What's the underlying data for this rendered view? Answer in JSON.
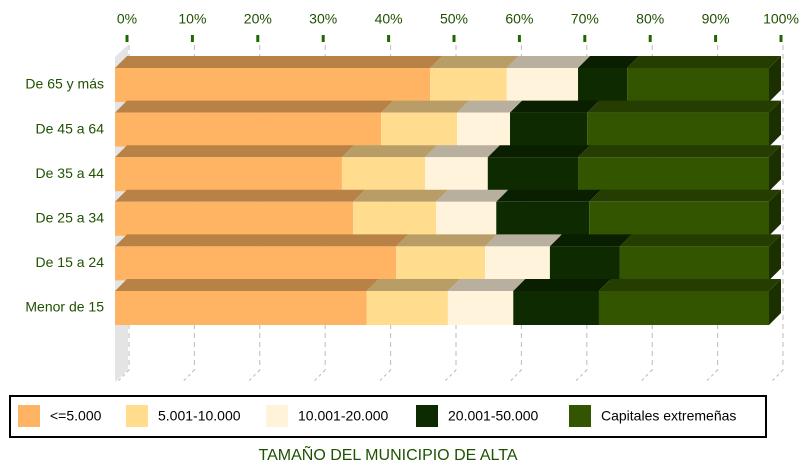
{
  "chart_data": {
    "type": "bar",
    "orientation": "horizontal",
    "stacked": true,
    "categories": [
      "De 65 y más",
      "De 45 a 64",
      "De 35 a 44",
      "De 25 a 34",
      "De 15 a 24",
      "Menor de 15"
    ],
    "series": [
      {
        "name": "<=5.000",
        "color": "#ffb463",
        "values": [
          48.2,
          40.7,
          34.7,
          36.4,
          43.0,
          38.5
        ]
      },
      {
        "name": "5.001-10.000",
        "color": "#ffdc8e",
        "values": [
          11.7,
          11.6,
          12.7,
          12.7,
          13.6,
          12.4
        ]
      },
      {
        "name": "10.001-20.000",
        "color": "#fff3dc",
        "values": [
          10.9,
          8.1,
          9.6,
          9.2,
          9.9,
          10.0
        ]
      },
      {
        "name": "20.001-50.000",
        "color": "#0e2a00",
        "values": [
          7.5,
          11.8,
          13.8,
          14.2,
          10.7,
          13.1
        ]
      },
      {
        "name": "Capitales extremeñas",
        "color": "#335500",
        "values": [
          21.7,
          27.8,
          29.2,
          27.5,
          22.8,
          26.0
        ]
      }
    ],
    "xlim": [
      0,
      100
    ],
    "xticks": [
      {
        "value": 0,
        "label": "0%"
      },
      {
        "value": 10,
        "label": "10%"
      },
      {
        "value": 20,
        "label": "20%"
      },
      {
        "value": 30,
        "label": "30%"
      },
      {
        "value": 40,
        "label": "40%"
      },
      {
        "value": 50,
        "label": "50%"
      },
      {
        "value": 60,
        "label": "60%"
      },
      {
        "value": 70,
        "label": "70%"
      },
      {
        "value": 80,
        "label": "80%"
      },
      {
        "value": 90,
        "label": "90%"
      },
      {
        "value": 100,
        "label": "100%"
      }
    ],
    "grid": true,
    "legend_title": "TAMAÑO DEL MUNICIPIO DE ALTA"
  }
}
